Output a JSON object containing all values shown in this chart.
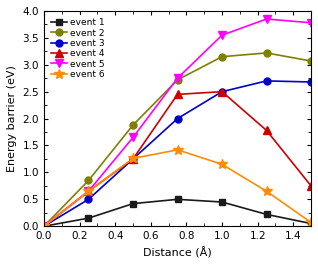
{
  "events": {
    "event 1": {
      "x": [
        0.0,
        0.25,
        0.5,
        0.75,
        1.0,
        1.25,
        1.5
      ],
      "y": [
        0.0,
        0.15,
        0.42,
        0.5,
        0.45,
        0.22,
        0.05
      ],
      "color": "#1a1a1a",
      "marker": "s",
      "markersize": 4.5
    },
    "event 2": {
      "x": [
        0.0,
        0.25,
        0.5,
        0.75,
        1.0,
        1.25,
        1.5
      ],
      "y": [
        0.0,
        0.85,
        1.88,
        2.72,
        3.15,
        3.22,
        3.07
      ],
      "color": "#808000",
      "marker": "o",
      "markersize": 5
    },
    "event 3": {
      "x": [
        0.0,
        0.25,
        0.5,
        0.75,
        1.0,
        1.25,
        1.5
      ],
      "y": [
        0.0,
        0.5,
        1.25,
        2.0,
        2.5,
        2.7,
        2.68
      ],
      "color": "#0000cc",
      "marker": "o",
      "markersize": 5
    },
    "event 4": {
      "x": [
        0.0,
        0.25,
        0.5,
        0.75,
        1.0,
        1.25,
        1.5
      ],
      "y": [
        0.0,
        0.65,
        1.25,
        2.45,
        2.5,
        1.78,
        0.75
      ],
      "color": "#cc0000",
      "marker": "^",
      "markersize": 5.5
    },
    "event 5": {
      "x": [
        0.0,
        0.25,
        0.5,
        0.75,
        1.0,
        1.25,
        1.5
      ],
      "y": [
        0.0,
        0.65,
        1.65,
        2.75,
        3.55,
        3.85,
        3.78
      ],
      "color": "#ff00ff",
      "marker": "v",
      "markersize": 5.5
    },
    "event 6": {
      "x": [
        0.0,
        0.25,
        0.5,
        0.75,
        1.0,
        1.25,
        1.5
      ],
      "y": [
        0.0,
        0.65,
        1.26,
        1.42,
        1.15,
        0.65,
        0.07
      ],
      "color": "#ff8c00",
      "marker": "*",
      "markersize": 7
    }
  },
  "xlabel": "Distance (Å)",
  "ylabel": "Energy barrier (eV)",
  "xlim": [
    0.0,
    1.5
  ],
  "ylim": [
    0.0,
    4.0
  ],
  "xticks": [
    0.0,
    0.2,
    0.4,
    0.6,
    0.8,
    1.0,
    1.2,
    1.4
  ],
  "yticks": [
    0.0,
    0.5,
    1.0,
    1.5,
    2.0,
    2.5,
    3.0,
    3.5,
    4.0
  ],
  "linewidth": 1.2
}
